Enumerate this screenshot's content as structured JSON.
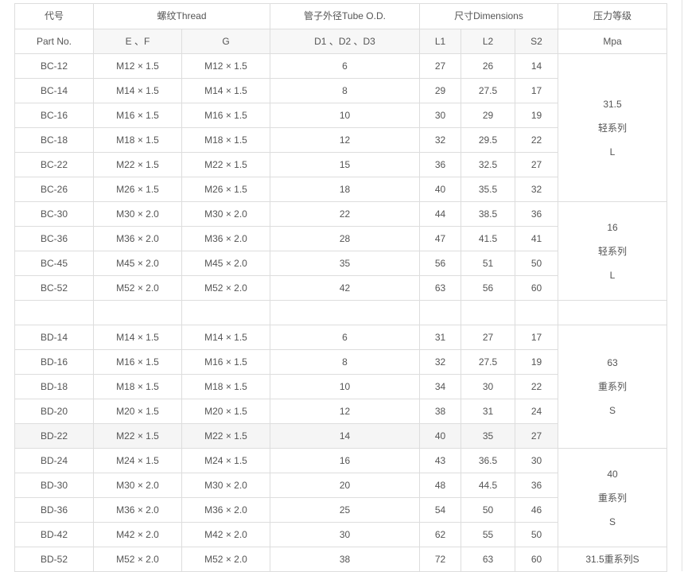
{
  "header": {
    "part_cn": "代号",
    "part_en": "Part No.",
    "thread": "螺纹Thread",
    "tube": "管子外径Tube O.D.",
    "dimensions": "尺寸Dimensions",
    "pressure_cn": "压力等级",
    "pressure_unit": "Mpa",
    "ef": "E 、F",
    "g": "G",
    "d": "D1 、D2 、D3",
    "l1": "L1",
    "l2": "L2",
    "s2": "S2"
  },
  "rows": [
    [
      "BC-12",
      "M12 × 1.5",
      "M12 × 1.5",
      "6",
      "27",
      "26",
      "14"
    ],
    [
      "BC-14",
      "M14 × 1.5",
      "M14 × 1.5",
      "8",
      "29",
      "27.5",
      "17"
    ],
    [
      "BC-16",
      "M16 × 1.5",
      "M16 × 1.5",
      "10",
      "30",
      "29",
      "19"
    ],
    [
      "BC-18",
      "M18 × 1.5",
      "M18 × 1.5",
      "12",
      "32",
      "29.5",
      "22"
    ],
    [
      "BC-22",
      "M22 × 1.5",
      "M22 × 1.5",
      "15",
      "36",
      "32.5",
      "27"
    ],
    [
      "BC-26",
      "M26 × 1.5",
      "M26 × 1.5",
      "18",
      "40",
      "35.5",
      "32"
    ],
    [
      "BC-30",
      "M30 × 2.0",
      "M30 × 2.0",
      "22",
      "44",
      "38.5",
      "36"
    ],
    [
      "BC-36",
      "M36 × 2.0",
      "M36 × 2.0",
      "28",
      "47",
      "41.5",
      "41"
    ],
    [
      "BC-45",
      "M45 × 2.0",
      "M45 × 2.0",
      "35",
      "56",
      "51",
      "50"
    ],
    [
      "BC-52",
      "M52 × 2.0",
      "M52 × 2.0",
      "42",
      "63",
      "56",
      "60"
    ],
    [
      "",
      "",
      "",
      "",
      "",
      "",
      ""
    ],
    [
      "BD-14",
      "M14 × 1.5",
      "M14 × 1.5",
      "6",
      "31",
      "27",
      "17"
    ],
    [
      "BD-16",
      "M16 × 1.5",
      "M16 × 1.5",
      "8",
      "32",
      "27.5",
      "19"
    ],
    [
      "BD-18",
      "M18 × 1.5",
      "M18 × 1.5",
      "10",
      "34",
      "30",
      "22"
    ],
    [
      "BD-20",
      "M20 × 1.5",
      "M20 × 1.5",
      "12",
      "38",
      "31",
      "24"
    ],
    [
      "BD-22",
      "M22 × 1.5",
      "M22 × 1.5",
      "14",
      "40",
      "35",
      "27"
    ],
    [
      "BD-24",
      "M24 × 1.5",
      "M24 × 1.5",
      "16",
      "43",
      "36.5",
      "30"
    ],
    [
      "BD-30",
      "M30 × 2.0",
      "M30 × 2.0",
      "20",
      "48",
      "44.5",
      "36"
    ],
    [
      "BD-36",
      "M36 × 2.0",
      "M36 × 2.0",
      "25",
      "54",
      "50",
      "46"
    ],
    [
      "BD-42",
      "M42 × 2.0",
      "M42 × 2.0",
      "30",
      "62",
      "55",
      "50"
    ],
    [
      "BD-52",
      "M52 × 2.0",
      "M52 × 2.0",
      "38",
      "72",
      "63",
      "60"
    ]
  ],
  "pressure_groups": [
    {
      "rows": 6,
      "lines": [
        "31.5",
        "轻系列",
        "L"
      ]
    },
    {
      "rows": 4,
      "lines": [
        "16",
        "轻系列",
        "L"
      ]
    },
    {
      "rows": 1,
      "lines": []
    },
    {
      "rows": 5,
      "lines": [
        "63",
        "重系列",
        "S"
      ]
    },
    {
      "rows": 4,
      "lines": [
        "40",
        "重系列",
        "S"
      ]
    },
    {
      "rows": 1,
      "lines": [
        "31.5重系列S"
      ]
    }
  ],
  "hovered_row": "BD-22"
}
